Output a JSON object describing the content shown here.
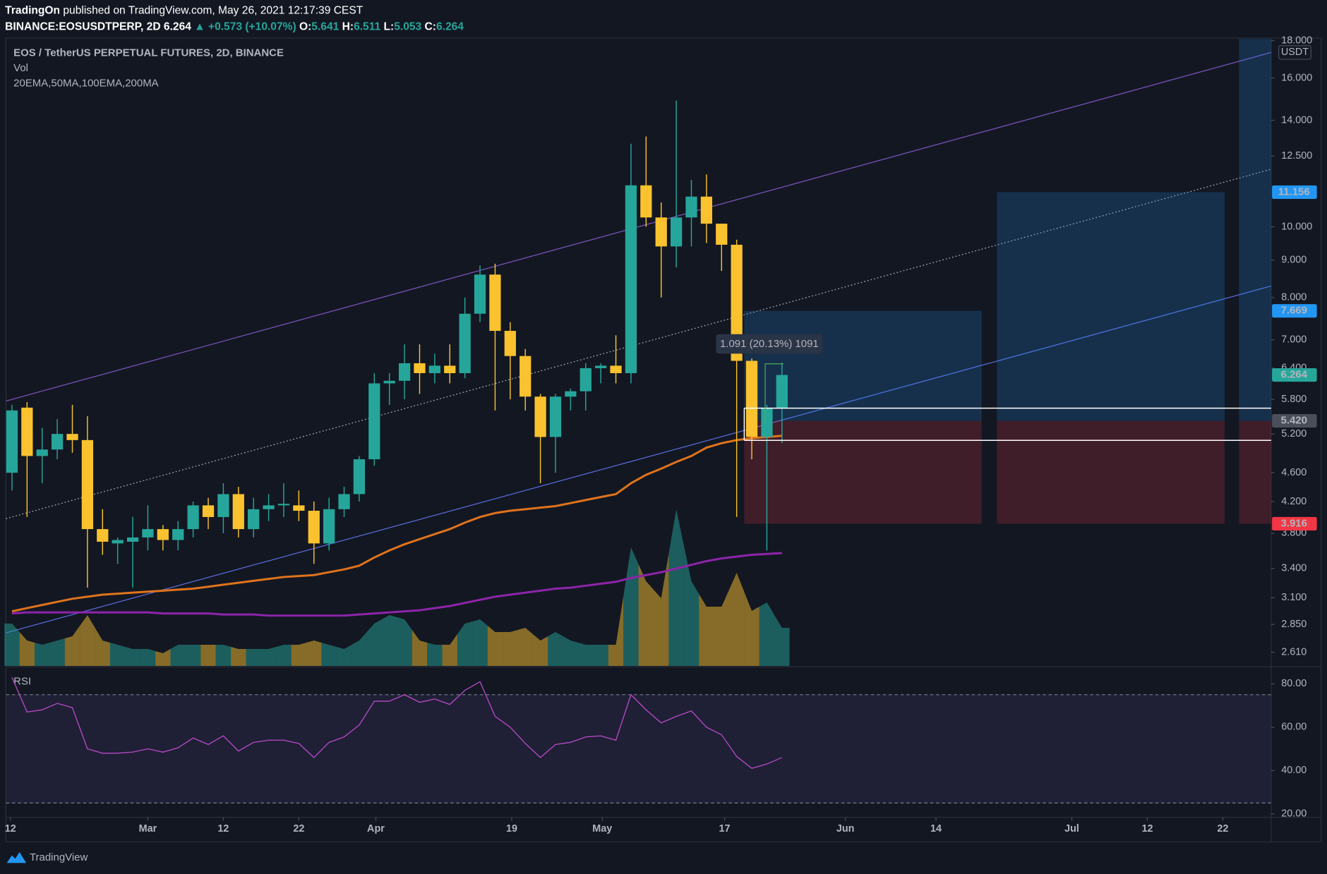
{
  "header": {
    "author": "TradingOn",
    "published": "published on TradingView.com, May 26, 2021 12:17:39 CEST",
    "symbol": "BINANCE:EOSUSDTPERP, 2D",
    "last": "6.264",
    "change": "▲ +0.573 (+10.07%)",
    "ohlc": [
      {
        "label": "O:",
        "value": "5.641"
      },
      {
        "label": "H:",
        "value": "6.511"
      },
      {
        "label": "L:",
        "value": "5.053"
      },
      {
        "label": "C:",
        "value": "6.264"
      }
    ]
  },
  "chart_data": {
    "type": "candlestick",
    "title": "EOS / TetherUS PERPETUAL FUTURES, 2D, BINANCE",
    "volume_label": "Vol",
    "indicators_label": "20EMA,50MA,100EMA,200MA",
    "currency": "USDT",
    "log_scale": true,
    "up_color": "#26a69a",
    "down_color": "#f9c22e",
    "open": [
      4.6,
      5.65,
      4.85,
      4.95,
      5.2,
      5.1,
      3.85,
      3.68,
      3.7,
      3.75,
      3.85,
      3.72,
      3.85,
      4.15,
      4.0,
      4.3,
      3.85,
      4.1,
      4.15,
      4.15,
      4.08,
      3.68,
      4.1,
      4.3,
      4.8,
      6.1,
      6.15,
      6.5,
      6.3,
      6.45,
      6.3,
      7.6,
      8.6,
      7.2,
      6.65,
      5.85,
      5.15,
      5.85,
      5.95,
      6.4,
      6.45,
      6.3,
      11.4,
      10.3,
      9.4,
      10.3,
      11.0,
      10.1,
      9.45,
      6.55,
      5.15,
      5.641
    ],
    "high": [
      5.7,
      5.75,
      5.3,
      5.45,
      5.7,
      5.5,
      4.1,
      3.75,
      4.0,
      4.15,
      3.9,
      3.95,
      4.2,
      4.25,
      4.45,
      4.4,
      4.25,
      4.3,
      4.45,
      4.35,
      4.2,
      4.25,
      4.4,
      4.85,
      6.3,
      6.3,
      6.9,
      6.9,
      6.7,
      6.9,
      8.0,
      8.85,
      8.9,
      7.4,
      6.8,
      5.9,
      5.9,
      6.0,
      6.5,
      6.5,
      7.1,
      13.0,
      13.3,
      10.8,
      14.9,
      11.6,
      11.8,
      10.1,
      9.6,
      6.6,
      5.7,
      6.511
    ],
    "low": [
      4.35,
      4.0,
      4.45,
      4.8,
      4.9,
      3.2,
      3.55,
      3.45,
      3.2,
      3.6,
      3.6,
      3.6,
      3.75,
      3.85,
      3.8,
      3.75,
      3.75,
      3.95,
      4.0,
      3.95,
      3.45,
      3.6,
      4.0,
      4.2,
      4.7,
      5.7,
      5.8,
      5.9,
      6.1,
      6.1,
      6.2,
      7.4,
      5.6,
      5.8,
      5.6,
      4.45,
      4.6,
      5.6,
      5.6,
      6.1,
      6.1,
      6.1,
      10.0,
      8.0,
      8.8,
      9.4,
      9.5,
      8.7,
      4.0,
      4.8,
      3.6,
      5.053
    ],
    "close": [
      5.6,
      4.85,
      4.95,
      5.2,
      5.1,
      3.85,
      3.7,
      3.72,
      3.75,
      3.85,
      3.72,
      3.85,
      4.15,
      4.0,
      4.3,
      3.85,
      4.1,
      4.15,
      4.17,
      4.08,
      3.68,
      4.1,
      4.3,
      4.8,
      6.1,
      6.15,
      6.5,
      6.3,
      6.45,
      6.3,
      7.6,
      8.6,
      7.2,
      6.65,
      5.85,
      5.15,
      5.85,
      5.95,
      6.4,
      6.45,
      6.3,
      11.4,
      10.3,
      9.4,
      10.3,
      11.0,
      10.1,
      9.45,
      6.55,
      5.15,
      5.641,
      6.264
    ],
    "volume": [
      50,
      30,
      25,
      30,
      35,
      60,
      30,
      25,
      20,
      20,
      15,
      25,
      25,
      25,
      25,
      20,
      20,
      20,
      25,
      25,
      30,
      25,
      20,
      30,
      50,
      60,
      55,
      30,
      25,
      25,
      50,
      55,
      40,
      40,
      45,
      30,
      40,
      30,
      25,
      25,
      25,
      140,
      100,
      80,
      185,
      100,
      70,
      70,
      110,
      65,
      75,
      45
    ],
    "series": [
      {
        "color": "#e0731c",
        "values": [
          2.97,
          3.0,
          3.03,
          3.06,
          3.09,
          3.11,
          3.13,
          3.14,
          3.15,
          3.16,
          3.17,
          3.18,
          3.19,
          3.21,
          3.23,
          3.25,
          3.27,
          3.29,
          3.31,
          3.32,
          3.33,
          3.36,
          3.39,
          3.43,
          3.52,
          3.6,
          3.67,
          3.73,
          3.79,
          3.85,
          3.93,
          4.0,
          4.05,
          4.08,
          4.1,
          4.12,
          4.14,
          4.18,
          4.22,
          4.26,
          4.3,
          4.45,
          4.57,
          4.66,
          4.76,
          4.85,
          4.98,
          5.05,
          5.1,
          5.13,
          5.15,
          5.17
        ]
      },
      {
        "color": "#8e24aa",
        "values": [
          2.95,
          2.96,
          2.96,
          2.96,
          2.96,
          2.96,
          2.96,
          2.96,
          2.96,
          2.96,
          2.95,
          2.95,
          2.95,
          2.95,
          2.94,
          2.94,
          2.94,
          2.93,
          2.93,
          2.93,
          2.93,
          2.93,
          2.93,
          2.94,
          2.95,
          2.96,
          2.97,
          2.98,
          3.0,
          3.02,
          3.05,
          3.08,
          3.11,
          3.13,
          3.15,
          3.17,
          3.19,
          3.2,
          3.22,
          3.24,
          3.26,
          3.3,
          3.33,
          3.36,
          3.4,
          3.44,
          3.48,
          3.51,
          3.53,
          3.55,
          3.56,
          3.57
        ]
      }
    ],
    "ylim": [
      2.5,
      18.1
    ],
    "yticks": [
      {
        "value": 18,
        "label": "18.000"
      },
      {
        "value": 16,
        "label": "16.000"
      },
      {
        "value": 14,
        "label": "14.000"
      },
      {
        "value": 12.5,
        "label": "12.500"
      },
      {
        "value": 10,
        "label": "10.000"
      },
      {
        "value": 9,
        "label": "9.000"
      },
      {
        "value": 8,
        "label": "8.000"
      },
      {
        "value": 7,
        "label": "7.000"
      },
      {
        "value": 6.4,
        "label": "6.400"
      },
      {
        "value": 5.8,
        "label": "5.800"
      },
      {
        "value": 5.2,
        "label": "5.200"
      },
      {
        "value": 4.6,
        "label": "4.600"
      },
      {
        "value": 4.2,
        "label": "4.200"
      },
      {
        "value": 3.8,
        "label": "3.800"
      },
      {
        "value": 3.4,
        "label": "3.400"
      },
      {
        "value": 3.1,
        "label": "3.100"
      },
      {
        "value": 2.85,
        "label": "2.850"
      },
      {
        "value": 2.61,
        "label": "2.610"
      }
    ],
    "xlim": [
      -0.4,
      83.4
    ],
    "xticks": [
      {
        "value": -0.1,
        "label": "12"
      },
      {
        "value": 9,
        "label": "Mar"
      },
      {
        "value": 14,
        "label": "12"
      },
      {
        "value": 19,
        "label": "22"
      },
      {
        "value": 24.1,
        "label": "Apr"
      },
      {
        "value": 33.1,
        "label": "19"
      },
      {
        "value": 39.1,
        "label": "May"
      },
      {
        "value": 47.2,
        "label": "17"
      },
      {
        "value": 55.2,
        "label": "Jun"
      },
      {
        "value": 61.2,
        "label": "14"
      },
      {
        "value": 70.2,
        "label": "Jul"
      },
      {
        "value": 75.2,
        "label": "12"
      },
      {
        "value": 80.2,
        "label": "22"
      }
    ],
    "price_labels": [
      {
        "value": 11.156,
        "label": "11.156",
        "color": "#2196f3"
      },
      {
        "value": 7.669,
        "label": "7.669",
        "color": "#2196f3"
      },
      {
        "value": 6.264,
        "label": "6.264",
        "color": "#26a69a"
      },
      {
        "value": 5.42,
        "label": "5.420",
        "color": "#4a4e59"
      },
      {
        "value": 3.916,
        "label": "3.916",
        "color": "#f23645"
      }
    ],
    "measure": "1.091 (20.13%) 1091",
    "position": {
      "entry": 5.42,
      "targets": [
        7.669,
        11.156
      ],
      "stop": 3.916
    }
  },
  "rsi": {
    "type": "line",
    "title": "RSI",
    "color": "#ab47bc",
    "values": [
      83,
      67,
      68,
      71,
      69,
      50,
      48,
      48,
      48.5,
      50,
      48.5,
      50.5,
      55,
      52,
      56,
      49,
      53,
      54,
      54,
      52.5,
      46,
      53,
      55.5,
      61,
      72,
      72,
      75,
      71.5,
      73,
      70.5,
      77,
      81,
      65,
      60,
      52.5,
      46,
      52,
      53,
      55.5,
      56,
      54,
      75,
      68,
      62,
      65,
      67.5,
      60,
      56.5,
      46.5,
      41,
      43,
      46
    ],
    "ylim": [
      18.8,
      84.4
    ],
    "yticks": [
      {
        "value": 80,
        "label": "80.00"
      },
      {
        "value": 60,
        "label": "60.00"
      },
      {
        "value": 40,
        "label": "40.00"
      },
      {
        "value": 20,
        "label": "20.00"
      }
    ],
    "bands": [
      75,
      25
    ]
  },
  "footer": {
    "brand": "TradingView"
  }
}
